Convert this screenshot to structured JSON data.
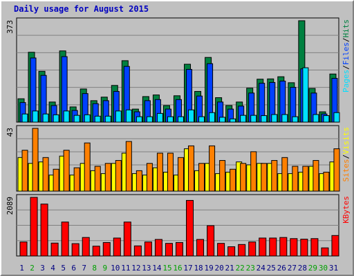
{
  "title": "Daily usage for August 2015",
  "colors": {
    "background": "#c0c0c0",
    "title": "#0000c0",
    "grid": "#808080",
    "hits": "#008040",
    "files": "#0040ff",
    "pages": "#00e0ff",
    "visits": "#ffff00",
    "sites": "#ff8000",
    "kbytes": "#ff0000",
    "weekday_label": "#000080",
    "weekend_label": "#00a000"
  },
  "chart_data": [
    {
      "type": "bar",
      "max_label": "373",
      "ylim": [
        0,
        373
      ],
      "legend": [
        {
          "text": "Pages",
          "color": "#00e0ff"
        },
        {
          "text": "/",
          "color": "#000000"
        },
        {
          "text": "Files",
          "color": "#0040ff"
        },
        {
          "text": "/",
          "color": "#000000"
        },
        {
          "text": "Hits",
          "color": "#008040"
        }
      ],
      "series": [
        {
          "name": "Hits",
          "color": "#008040",
          "values": [
            86,
            257,
            187,
            74,
            262,
            56,
            122,
            79,
            92,
            135,
            226,
            48,
            94,
            100,
            61,
            97,
            213,
            113,
            238,
            90,
            61,
            74,
            125,
            158,
            159,
            167,
            145,
            373,
            124,
            38,
            177
          ]
        },
        {
          "name": "Files",
          "color": "#0040ff",
          "values": [
            72,
            236,
            172,
            61,
            241,
            43,
            105,
            68,
            79,
            113,
            205,
            38,
            79,
            83,
            48,
            83,
            194,
            96,
            215,
            74,
            48,
            59,
            107,
            143,
            146,
            151,
            128,
            196,
            107,
            30,
            161
          ]
        },
        {
          "name": "Pages",
          "color": "#00e0ff",
          "values": [
            30,
            41,
            30,
            27,
            41,
            25,
            27,
            22,
            22,
            41,
            45,
            20,
            20,
            32,
            20,
            20,
            45,
            20,
            35,
            18,
            12,
            25,
            25,
            24,
            28,
            28,
            20,
            200,
            28,
            24,
            35
          ]
        }
      ],
      "x": [
        1,
        2,
        3,
        4,
        5,
        6,
        7,
        8,
        9,
        10,
        11,
        12,
        13,
        14,
        15,
        16,
        17,
        18,
        19,
        20,
        21,
        22,
        23,
        24,
        25,
        26,
        27,
        28,
        29,
        30,
        31
      ]
    },
    {
      "type": "bar",
      "max_label": "43",
      "ylim": [
        0,
        43
      ],
      "legend": [
        {
          "text": "Sites",
          "color": "#ff8000"
        },
        {
          "text": "/",
          "color": "#000000"
        },
        {
          "text": "Visits",
          "color": "#ffff00"
        }
      ],
      "series": [
        {
          "name": "Visits",
          "color": "#ffff00",
          "values": [
            23,
            19,
            20,
            11,
            24,
            11,
            19,
            14,
            12,
            19,
            26,
            12,
            11,
            16,
            13,
            11,
            29,
            14,
            19,
            12,
            13,
            20,
            18,
            19,
            19,
            12,
            12,
            13,
            17,
            12,
            20
          ]
        },
        {
          "name": "Sites",
          "color": "#ff8000",
          "values": [
            28,
            43,
            23,
            15,
            28,
            16,
            33,
            17,
            19,
            21,
            34,
            14,
            19,
            26,
            26,
            23,
            31,
            19,
            31,
            21,
            15,
            19,
            27,
            19,
            21,
            23,
            17,
            17,
            21,
            13,
            29
          ]
        }
      ],
      "x": [
        1,
        2,
        3,
        4,
        5,
        6,
        7,
        8,
        9,
        10,
        11,
        12,
        13,
        14,
        15,
        16,
        17,
        18,
        19,
        20,
        21,
        22,
        23,
        24,
        25,
        26,
        27,
        28,
        29,
        30,
        31
      ]
    },
    {
      "type": "bar",
      "max_label": "2089",
      "ylim": [
        0,
        2089
      ],
      "legend": [
        {
          "text": "KBytes",
          "color": "#ff0000"
        }
      ],
      "series": [
        {
          "name": "KBytes",
          "color": "#ff0000",
          "values": [
            500,
            2089,
            1850,
            460,
            1210,
            440,
            660,
            350,
            480,
            640,
            1210,
            360,
            500,
            590,
            450,
            480,
            1980,
            590,
            1080,
            450,
            330,
            410,
            500,
            640,
            640,
            660,
            620,
            600,
            620,
            290,
            730
          ]
        }
      ],
      "x": [
        1,
        2,
        3,
        4,
        5,
        6,
        7,
        8,
        9,
        10,
        11,
        12,
        13,
        14,
        15,
        16,
        17,
        18,
        19,
        20,
        21,
        22,
        23,
        24,
        25,
        26,
        27,
        28,
        29,
        30,
        31
      ]
    }
  ],
  "days": [
    {
      "label": "1",
      "weekend": false
    },
    {
      "label": "2",
      "weekend": true
    },
    {
      "label": "3",
      "weekend": false
    },
    {
      "label": "4",
      "weekend": false
    },
    {
      "label": "5",
      "weekend": false
    },
    {
      "label": "6",
      "weekend": false
    },
    {
      "label": "7",
      "weekend": false
    },
    {
      "label": "8",
      "weekend": true
    },
    {
      "label": "9",
      "weekend": true
    },
    {
      "label": "10",
      "weekend": false
    },
    {
      "label": "11",
      "weekend": false
    },
    {
      "label": "12",
      "weekend": false
    },
    {
      "label": "13",
      "weekend": false
    },
    {
      "label": "14",
      "weekend": false
    },
    {
      "label": "15",
      "weekend": true
    },
    {
      "label": "16",
      "weekend": true
    },
    {
      "label": "17",
      "weekend": false
    },
    {
      "label": "18",
      "weekend": false
    },
    {
      "label": "19",
      "weekend": false
    },
    {
      "label": "20",
      "weekend": false
    },
    {
      "label": "21",
      "weekend": false
    },
    {
      "label": "22",
      "weekend": true
    },
    {
      "label": "23",
      "weekend": true
    },
    {
      "label": "24",
      "weekend": false
    },
    {
      "label": "25",
      "weekend": false
    },
    {
      "label": "26",
      "weekend": false
    },
    {
      "label": "27",
      "weekend": false
    },
    {
      "label": "28",
      "weekend": false
    },
    {
      "label": "29",
      "weekend": true
    },
    {
      "label": "30",
      "weekend": true
    },
    {
      "label": "31",
      "weekend": false
    }
  ]
}
